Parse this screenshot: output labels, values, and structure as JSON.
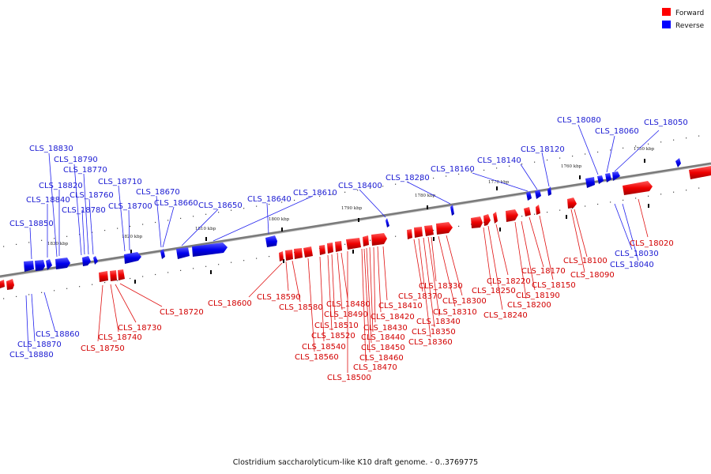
{
  "title": "Clostridium saccharolyticum-like K10 draft genome. - 0..3769775",
  "legend": [
    {
      "label": "Forward",
      "color": "#ff0000"
    },
    {
      "label": "Reverse",
      "color": "#0000ff"
    }
  ],
  "scale_labels": [
    "1750 kbp",
    "1760 kbp",
    "1770 kbp",
    "1780 kbp",
    "1790 kbp",
    "1800 kbp",
    "1810 kbp",
    "1820 kbp",
    "1830 kbp"
  ],
  "reverse_genes": [
    "CLS_18050",
    "CLS_18060",
    "CLS_18080",
    "CLS_18120",
    "CLS_18140",
    "CLS_18160",
    "CLS_18280",
    "CLS_18400",
    "CLS_18610",
    "CLS_18640",
    "CLS_18650",
    "CLS_18660",
    "CLS_18670",
    "CLS_18700",
    "CLS_18710",
    "CLS_18760",
    "CLS_18770",
    "CLS_18780",
    "CLS_18790",
    "CLS_18820",
    "CLS_18830",
    "CLS_18840",
    "CLS_18850",
    "CLS_18030",
    "CLS_18040",
    "CLS_18860",
    "CLS_18870",
    "CLS_18880"
  ],
  "forward_genes": [
    "CLS_18020",
    "CLS_18090",
    "CLS_18100",
    "CLS_18150",
    "CLS_18170",
    "CLS_18190",
    "CLS_18200",
    "CLS_18220",
    "CLS_18240",
    "CLS_18250",
    "CLS_18300",
    "CLS_18310",
    "CLS_18330",
    "CLS_18340",
    "CLS_18350",
    "CLS_18360",
    "CLS_18370",
    "CLS_18410",
    "CLS_18420",
    "CLS_18430",
    "CLS_18440",
    "CLS_18450",
    "CLS_18460",
    "CLS_18470",
    "CLS_18480",
    "CLS_18490",
    "CLS_18500",
    "CLS_18510",
    "CLS_18520",
    "CLS_18540",
    "CLS_18560",
    "CLS_18580",
    "CLS_18590",
    "CLS_18600",
    "CLS_18720",
    "CLS_18730",
    "CLS_18740",
    "CLS_18750"
  ]
}
